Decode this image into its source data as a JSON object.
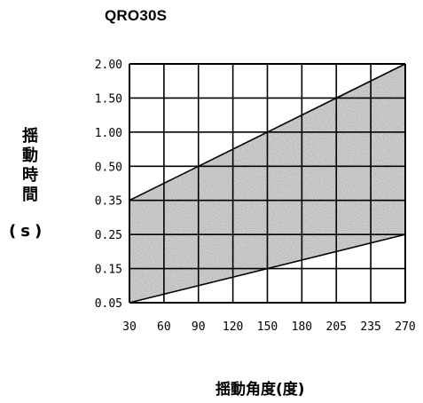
{
  "chart_data": {
    "type": "area",
    "title": "QRO30S",
    "ylabel_chars": [
      "揺",
      "動",
      "時",
      "間"
    ],
    "yunit": "(s)",
    "xlabel": "揺動角度(度)",
    "x_ticks": [
      "30",
      "60",
      "90",
      "120",
      "150",
      "180",
      "205",
      "235",
      "270"
    ],
    "y_ticks": [
      "0.05",
      "0.15",
      "0.25",
      "0.35",
      "0.50",
      "1.00",
      "1.50",
      "2.00"
    ],
    "upper_line": {
      "x": [
        "30",
        "270"
      ],
      "y": [
        "0.35",
        "2.00"
      ]
    },
    "lower_line": {
      "x": [
        "30",
        "270"
      ],
      "y": [
        "0.05",
        "0.25"
      ]
    },
    "grid": true,
    "fill_color": "#8c8c8c",
    "line_color": "#000000"
  }
}
